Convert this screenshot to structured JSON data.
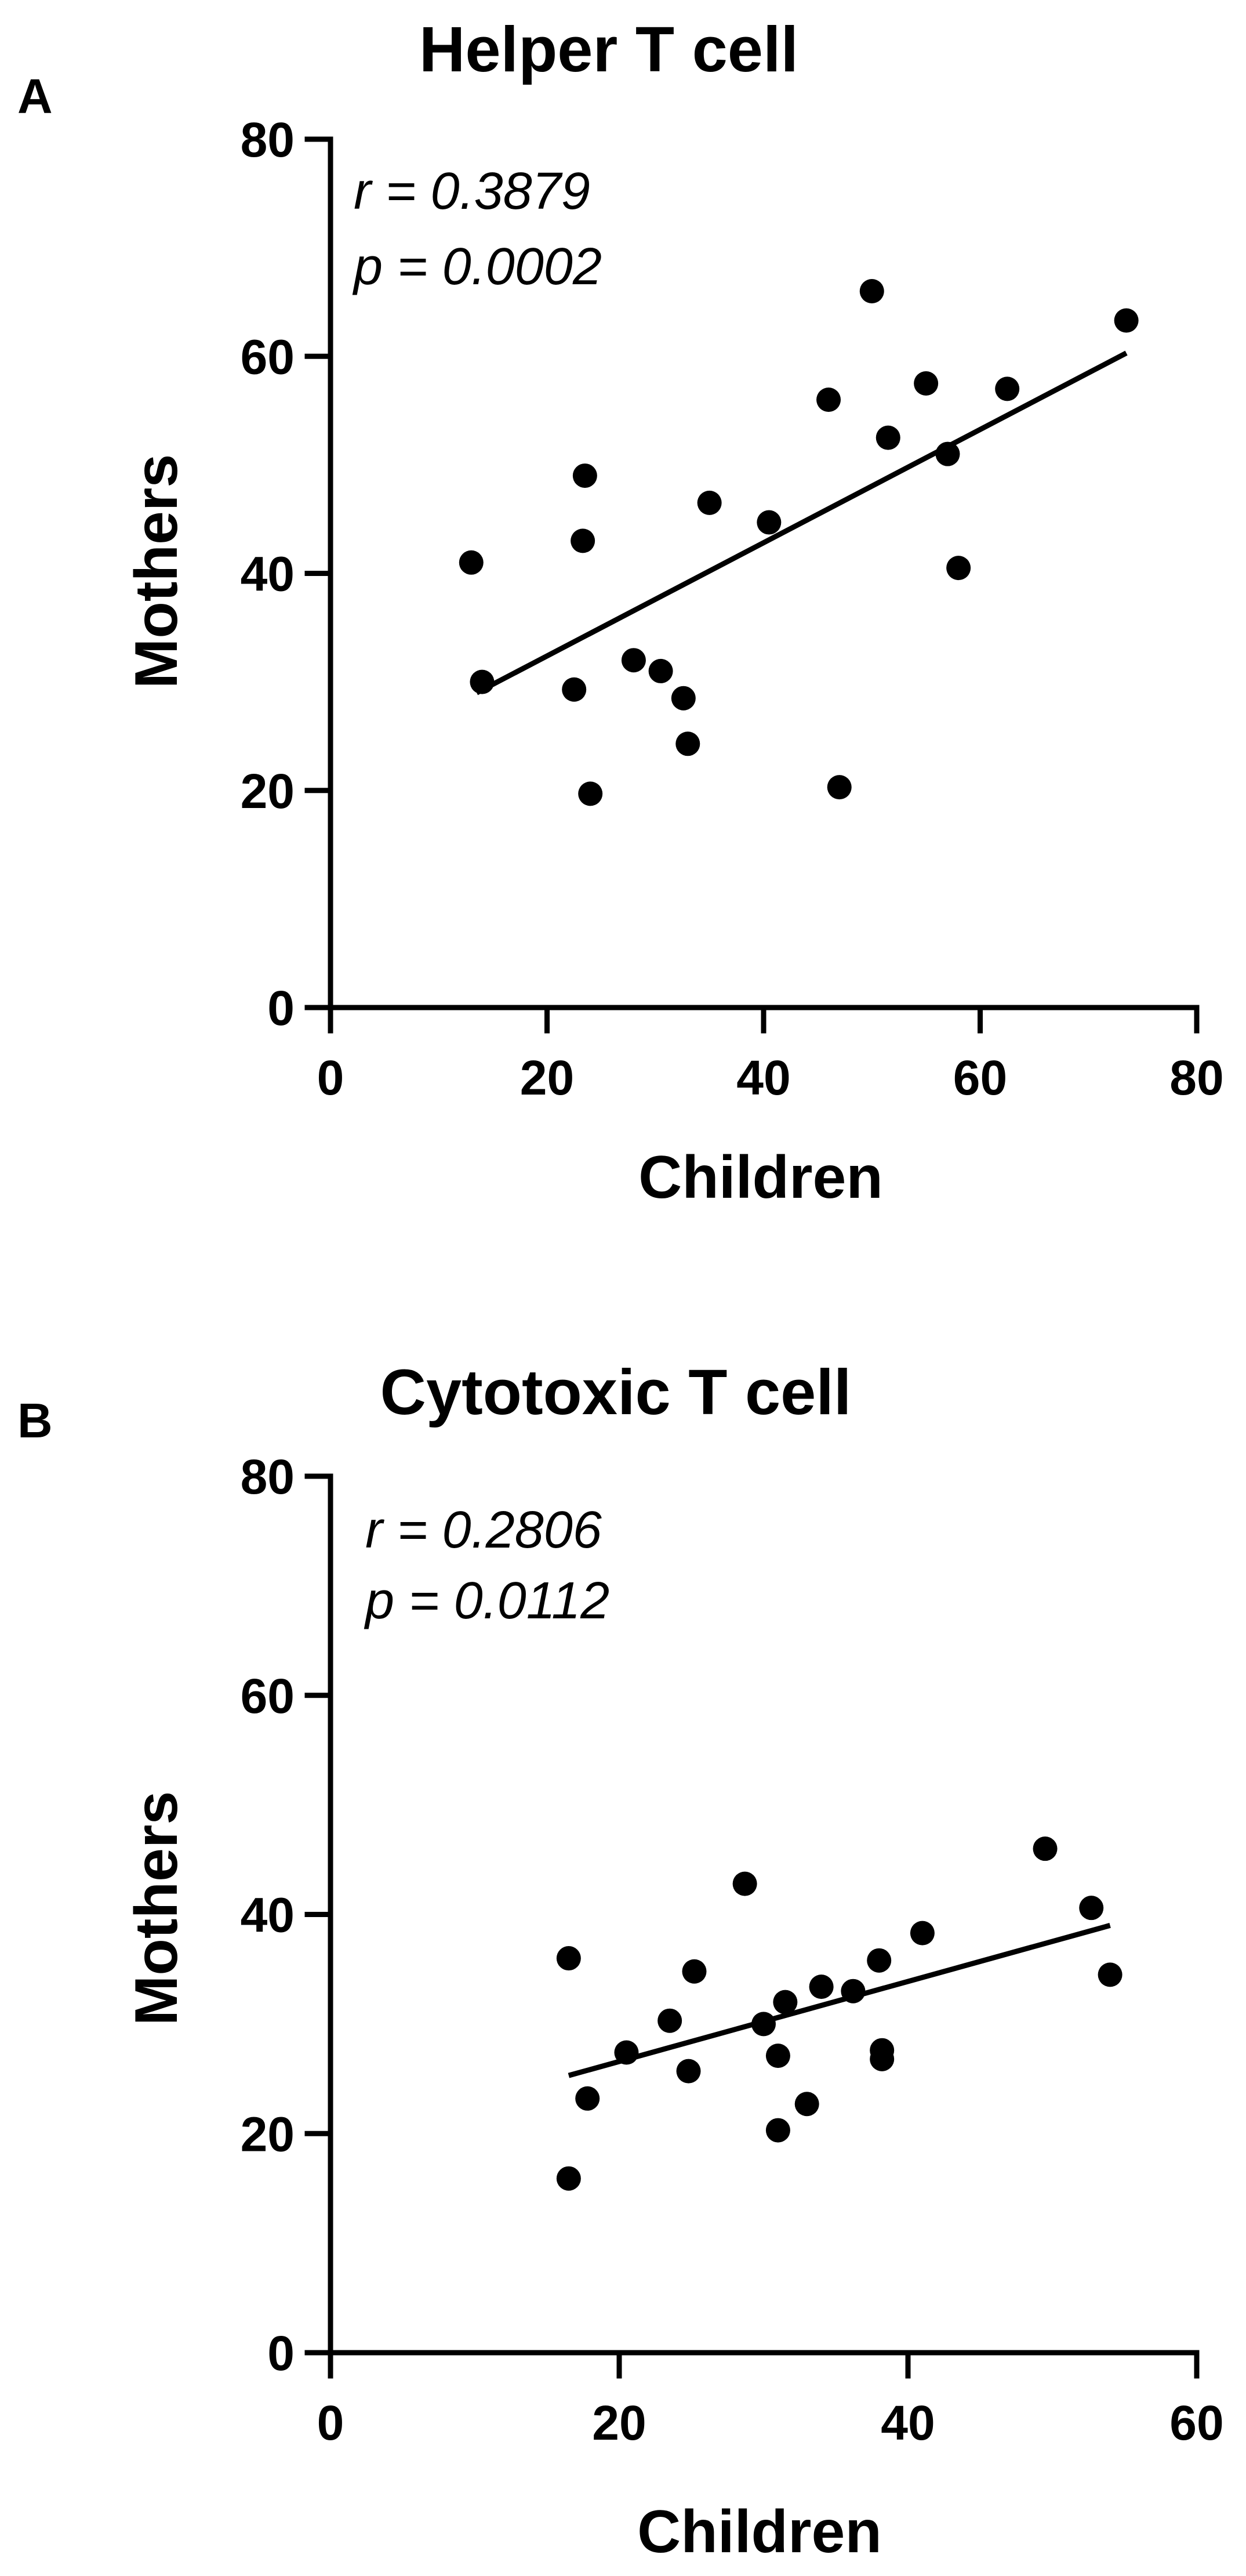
{
  "chart_data": [
    {
      "type": "scatter",
      "panel": "A",
      "title": "Helper T cell",
      "xlabel": "Children",
      "ylabel": "Mothers",
      "xlim": [
        0,
        80
      ],
      "ylim": [
        0,
        80
      ],
      "xticks": [
        0,
        20,
        40,
        60,
        80
      ],
      "yticks": [
        0,
        20,
        40,
        60,
        80
      ],
      "annotations": [
        "r = 0.3879",
        "p = 0.0002"
      ],
      "regression_line": {
        "x": [
          13.5,
          73.5
        ],
        "y": [
          29.0,
          60.3
        ]
      },
      "points": [
        {
          "x": 13.0,
          "y": 41.0
        },
        {
          "x": 14.0,
          "y": 30.0
        },
        {
          "x": 22.5,
          "y": 29.3
        },
        {
          "x": 23.3,
          "y": 43.0
        },
        {
          "x": 23.5,
          "y": 49.0
        },
        {
          "x": 24.0,
          "y": 19.7
        },
        {
          "x": 28.0,
          "y": 32.0
        },
        {
          "x": 30.5,
          "y": 31.0
        },
        {
          "x": 32.6,
          "y": 28.5
        },
        {
          "x": 33.0,
          "y": 24.3
        },
        {
          "x": 35.0,
          "y": 46.5
        },
        {
          "x": 40.5,
          "y": 44.7
        },
        {
          "x": 46.0,
          "y": 56.0
        },
        {
          "x": 47.0,
          "y": 20.3
        },
        {
          "x": 50.0,
          "y": 66.0
        },
        {
          "x": 51.5,
          "y": 52.5
        },
        {
          "x": 55.0,
          "y": 57.5
        },
        {
          "x": 57.0,
          "y": 51.0
        },
        {
          "x": 58.0,
          "y": 40.5
        },
        {
          "x": 62.5,
          "y": 57.0
        },
        {
          "x": 73.5,
          "y": 63.3
        }
      ]
    },
    {
      "type": "scatter",
      "panel": "B",
      "title": "Cytotoxic T cell",
      "xlabel": "Children",
      "ylabel": "Mothers",
      "xlim": [
        0,
        60
      ],
      "ylim": [
        0,
        80
      ],
      "xticks": [
        0,
        20,
        40,
        60
      ],
      "yticks": [
        0,
        20,
        40,
        60,
        80
      ],
      "annotations": [
        "r = 0.2806",
        "p = 0.0112"
      ],
      "regression_line": {
        "x": [
          16.5,
          54.0
        ],
        "y": [
          25.3,
          39.0
        ]
      },
      "points": [
        {
          "x": 16.5,
          "y": 36.0
        },
        {
          "x": 16.5,
          "y": 15.9
        },
        {
          "x": 17.8,
          "y": 23.2
        },
        {
          "x": 20.5,
          "y": 27.4
        },
        {
          "x": 23.5,
          "y": 30.3
        },
        {
          "x": 24.8,
          "y": 25.7
        },
        {
          "x": 25.2,
          "y": 34.8
        },
        {
          "x": 28.7,
          "y": 42.8
        },
        {
          "x": 30.0,
          "y": 30.0
        },
        {
          "x": 31.0,
          "y": 27.1
        },
        {
          "x": 31.0,
          "y": 20.3
        },
        {
          "x": 31.5,
          "y": 32.0
        },
        {
          "x": 33.0,
          "y": 22.7
        },
        {
          "x": 34.0,
          "y": 33.4
        },
        {
          "x": 36.2,
          "y": 33.0
        },
        {
          "x": 38.0,
          "y": 35.8
        },
        {
          "x": 38.2,
          "y": 27.6
        },
        {
          "x": 38.2,
          "y": 26.8
        },
        {
          "x": 41.0,
          "y": 38.3
        },
        {
          "x": 49.5,
          "y": 46.0
        },
        {
          "x": 52.7,
          "y": 40.6
        },
        {
          "x": 54.0,
          "y": 34.5
        }
      ]
    }
  ]
}
